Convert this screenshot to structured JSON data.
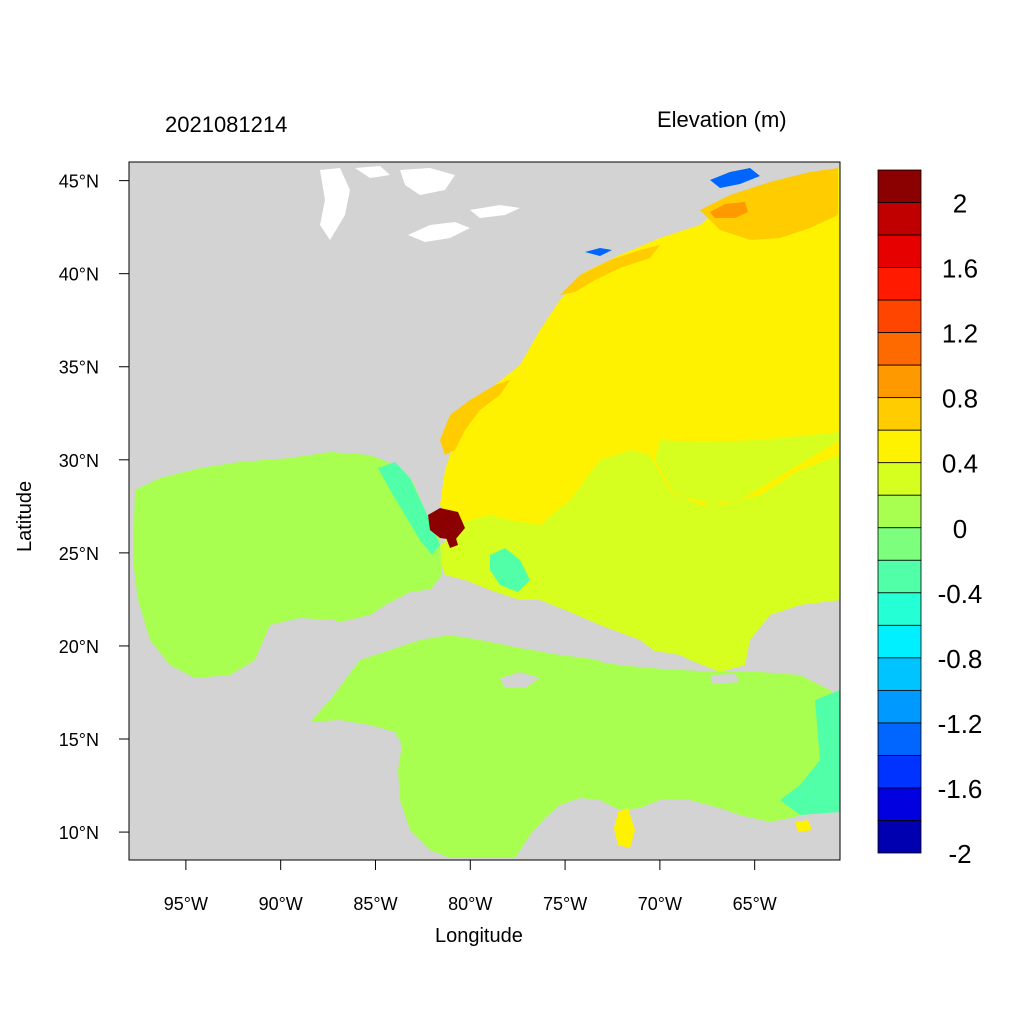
{
  "plot": {
    "time_label": "2021081214",
    "field_label": "Elevation (m)",
    "xlabel": "Longitude",
    "ylabel": "Latitude"
  },
  "axes": {
    "lon_range": [
      -98,
      -60.5
    ],
    "lat_range": [
      8.5,
      46
    ],
    "x_ticks": [
      {
        "value": -95,
        "label": "95°W"
      },
      {
        "value": -90,
        "label": "90°W"
      },
      {
        "value": -85,
        "label": "85°W"
      },
      {
        "value": -80,
        "label": "80°W"
      },
      {
        "value": -75,
        "label": "75°W"
      },
      {
        "value": -70,
        "label": "70°W"
      },
      {
        "value": -65,
        "label": "65°W"
      }
    ],
    "y_ticks": [
      {
        "value": 45,
        "label": "45°N"
      },
      {
        "value": 40,
        "label": "40°N"
      },
      {
        "value": 35,
        "label": "35°N"
      },
      {
        "value": 30,
        "label": "30°N"
      },
      {
        "value": 25,
        "label": "25°N"
      },
      {
        "value": 20,
        "label": "20°N"
      },
      {
        "value": 15,
        "label": "15°N"
      },
      {
        "value": 10,
        "label": "10°N"
      }
    ]
  },
  "colorbar": {
    "colors_top_to_bottom": [
      "#8b0000",
      "#c00000",
      "#e60000",
      "#ff1a00",
      "#ff4500",
      "#ff6a00",
      "#ff9900",
      "#ffcc00",
      "#fff200",
      "#d6ff1f",
      "#a8ff50",
      "#7dff7d",
      "#50ffa8",
      "#25ffd6",
      "#00f0ff",
      "#00c4ff",
      "#0099ff",
      "#0066ff",
      "#0033ff",
      "#0000e0",
      "#0000b0"
    ],
    "labels": [
      {
        "level": 2,
        "text": "2"
      },
      {
        "level": 1.6,
        "text": "1.6"
      },
      {
        "level": 1.2,
        "text": "1.2"
      },
      {
        "level": 0.8,
        "text": "0.8"
      },
      {
        "level": 0.4,
        "text": "0.4"
      },
      {
        "level": 0,
        "text": "0"
      },
      {
        "level": -0.4,
        "text": "-0.4"
      },
      {
        "level": -0.8,
        "text": "-0.8"
      },
      {
        "level": -1.2,
        "text": "-1.2"
      },
      {
        "level": -1.6,
        "text": "-1.6"
      },
      {
        "level": -2,
        "text": "-2"
      }
    ]
  },
  "field_colors": {
    "land": "#d3d3d3",
    "lakes": "#ffffff",
    "gulf_caribbean": "#a8ff50",
    "atlantic_south": "#d6ff1f",
    "atlantic_north": "#fff200",
    "shelf_orange": "#ffcc00",
    "shelf_deep_orange": "#ff9900",
    "negative_anomaly": "#50ffa8",
    "strong_negative": "#0066ff",
    "surge_max": "#8b0000"
  }
}
